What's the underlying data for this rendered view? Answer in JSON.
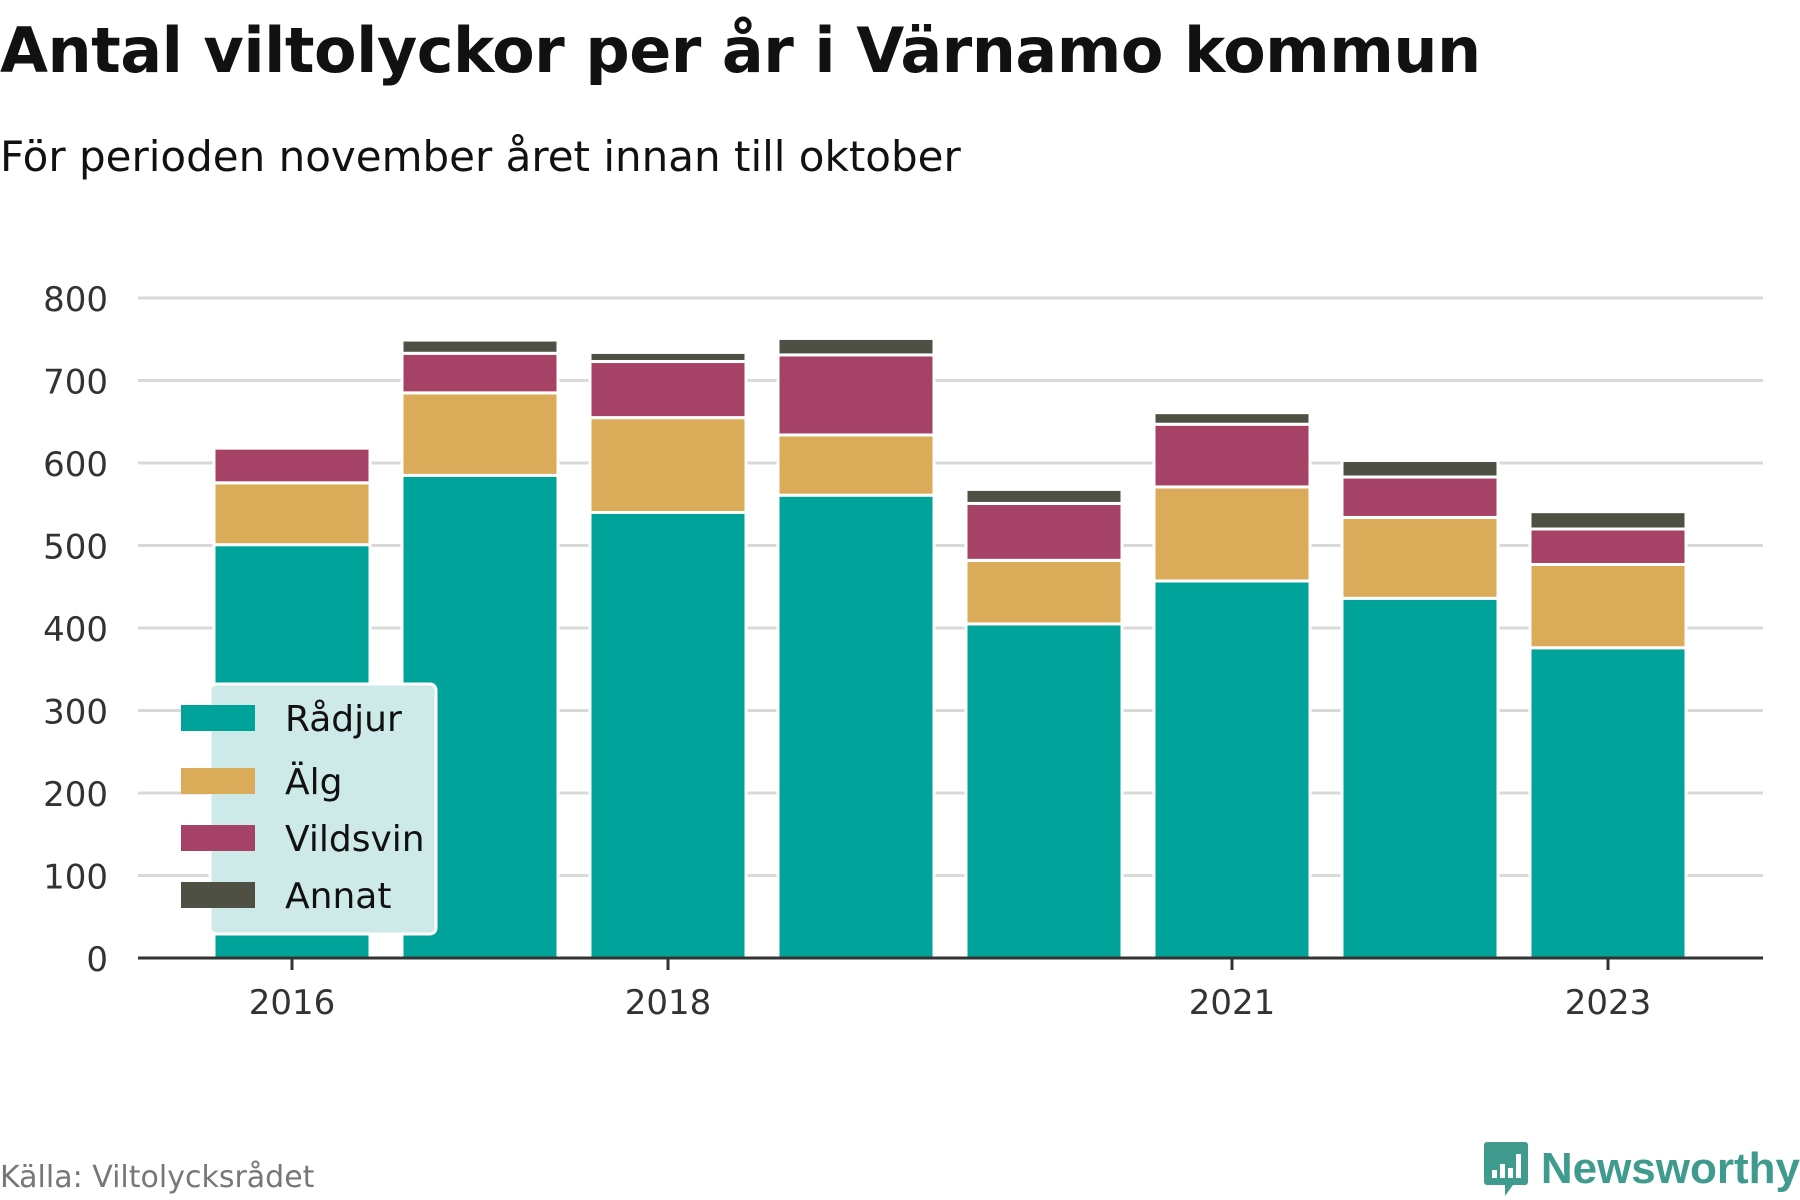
{
  "title": "Antal viltolyckor per år i Värnamo kommun",
  "subtitle": "För perioden november året innan till oktober",
  "source": "Källa: Viltolycksrådet",
  "brand": "Newsworthy",
  "colors": {
    "radjur": "#00a39a",
    "alg": "#daac5a",
    "vildsvin": "#a54266",
    "annat": "#4d5043",
    "grid": "#d9d9d9",
    "axis": "#333333",
    "legend_bg": "#cdeae8",
    "brand": "#3f9b8d"
  },
  "chart_data": {
    "type": "bar",
    "stacked": true,
    "categories": [
      "2016",
      "2017",
      "2018",
      "2019",
      "2020",
      "2021",
      "2022",
      "2023"
    ],
    "x_tick_labels": [
      "2016",
      "",
      "2018",
      "",
      "",
      "2021",
      "",
      "2023"
    ],
    "series": [
      {
        "name": "Rådjur",
        "color": "#00a39a",
        "values": [
          501,
          585,
          540,
          561,
          405,
          457,
          436,
          376
        ]
      },
      {
        "name": "Älg",
        "color": "#daac5a",
        "values": [
          75,
          100,
          115,
          73,
          77,
          114,
          98,
          101
        ]
      },
      {
        "name": "Vildsvin",
        "color": "#a54266",
        "values": [
          42,
          48,
          68,
          97,
          69,
          76,
          49,
          43
        ]
      },
      {
        "name": "Annat",
        "color": "#4d5043",
        "values": [
          0,
          16,
          11,
          20,
          17,
          14,
          20,
          21
        ]
      }
    ],
    "ylim": [
      0,
      800
    ],
    "yticks": [
      0,
      100,
      200,
      300,
      400,
      500,
      600,
      700,
      800
    ],
    "xlabel": "",
    "ylabel": "",
    "grid": true,
    "legend_position": "bottom-left"
  }
}
